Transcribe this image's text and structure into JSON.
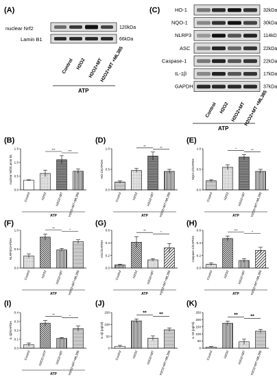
{
  "panels": {
    "A": "(A)",
    "B": "(B)",
    "C": "(C)",
    "D": "(D)",
    "E": "(E)",
    "F": "(F)",
    "G": "(G)",
    "H": "(H)",
    "I": "(I)",
    "J": "(J)",
    "K": "(K)"
  },
  "blot_a": {
    "rows": [
      {
        "label": "nuclear Nrf2",
        "kda": "120kDa"
      },
      {
        "label": "Lamin B1",
        "kda": "66kDa"
      }
    ],
    "conditions": [
      "Control",
      "H2O2",
      "H2O2+MT",
      "H2O2+MT +ML385"
    ],
    "group_label": "ATP"
  },
  "blot_c": {
    "rows": [
      {
        "label": "HO-1",
        "kda": "32kDa"
      },
      {
        "label": "NQO-1",
        "kda": "30kDa"
      },
      {
        "label": "NLRP3",
        "kda": "114kDa"
      },
      {
        "label": "ASC",
        "kda": "22kDa"
      },
      {
        "label": "Caspase-1",
        "kda": "22kDa"
      },
      {
        "label": "IL-1β",
        "kda": "17kDa"
      },
      {
        "label": "GAPDH",
        "kda": "37kDa"
      }
    ],
    "conditions": [
      "Control",
      "H2O2",
      "H2O2+MT",
      "H2O2+MT +ML385"
    ],
    "group_label": "ATP"
  },
  "chart_data": [
    {
      "panel": "B",
      "type": "bar",
      "ylabel": "nuclear Nrf2/Lamin B1",
      "ylim": [
        0,
        1.5
      ],
      "yticks": [
        "0.0",
        "0.5",
        "1.0",
        "1.5"
      ],
      "categories": [
        "Control",
        "H2O2",
        "H2O2+MT",
        "H2O2+MT+ML385"
      ],
      "values": [
        0.35,
        0.6,
        1.1,
        0.68
      ],
      "errors": [
        0.02,
        0.12,
        0.15,
        0.08
      ],
      "xlabel": "ATP",
      "significance": [
        {
          "from": 1,
          "to": 2,
          "label": "***"
        },
        {
          "from": 2,
          "to": 3,
          "label": "***"
        }
      ]
    },
    {
      "panel": "D",
      "type": "bar",
      "ylabel": "HO-1/GAPDH",
      "ylim": [
        0,
        1.0
      ],
      "yticks": [
        "0.0",
        "0.5",
        "1.0"
      ],
      "categories": [
        "Control",
        "H2O2",
        "H2O2+MT",
        "H2O2+MT+ML385"
      ],
      "values": [
        0.19,
        0.47,
        0.82,
        0.45
      ],
      "errors": [
        0.03,
        0.05,
        0.1,
        0.05
      ],
      "xlabel": "ATP",
      "significance": [
        {
          "from": 1,
          "to": 2,
          "label": "**"
        },
        {
          "from": 2,
          "to": 3,
          "label": "**"
        }
      ]
    },
    {
      "panel": "E",
      "type": "bar",
      "ylabel": "NQO-1/GAPDH",
      "ylim": [
        0,
        1.0
      ],
      "yticks": [
        "0.0",
        "0.5",
        "1.0"
      ],
      "categories": [
        "Control",
        "H2O2",
        "H2O2+MT",
        "H2O2+MT+ML385"
      ],
      "values": [
        0.22,
        0.55,
        0.8,
        0.45
      ],
      "errors": [
        0.03,
        0.06,
        0.06,
        0.05
      ],
      "xlabel": "ATP",
      "significance": [
        {
          "from": 1,
          "to": 2,
          "label": "*"
        },
        {
          "from": 2,
          "to": 3,
          "label": "**"
        }
      ]
    },
    {
      "panel": "F",
      "type": "bar",
      "ylabel": "NLRP3/GAPDH",
      "ylim": [
        0,
        1.0
      ],
      "yticks": [
        "0.0",
        "0.5",
        "1.0"
      ],
      "categories": [
        "Control",
        "H2O2",
        "H2O2+MT",
        "H2O2+MT+ML385"
      ],
      "values": [
        0.32,
        0.82,
        0.48,
        0.7
      ],
      "errors": [
        0.05,
        0.08,
        0.04,
        0.05
      ],
      "xlabel": "ATP",
      "significance": [
        {
          "from": 1,
          "to": 2,
          "label": "**"
        },
        {
          "from": 2,
          "to": 3,
          "label": "*"
        }
      ]
    },
    {
      "panel": "G",
      "type": "bar",
      "ylabel": "ASC/GAPDH",
      "ylim": [
        0,
        0.6
      ],
      "yticks": [
        "0.0",
        "0.2",
        "0.4",
        "0.6"
      ],
      "categories": [
        "Control",
        "H2O2",
        "H2O2+MT",
        "H2O2+MT+ML385"
      ],
      "values": [
        0.05,
        0.41,
        0.13,
        0.32
      ],
      "errors": [
        0.01,
        0.09,
        0.02,
        0.07
      ],
      "xlabel": "ATP",
      "significance": [
        {
          "from": 1,
          "to": 2,
          "label": "**"
        },
        {
          "from": 2,
          "to": 3,
          "label": "*"
        }
      ]
    },
    {
      "panel": "H",
      "type": "bar",
      "ylabel": "Caspase-1/GAPDH",
      "ylim": [
        0,
        0.6
      ],
      "yticks": [
        "0.0",
        "0.2",
        "0.4",
        "0.6"
      ],
      "categories": [
        "Control",
        "H2O2",
        "H2O2+MT",
        "H2O2+MT+ML385"
      ],
      "values": [
        0.06,
        0.47,
        0.12,
        0.28
      ],
      "errors": [
        0.02,
        0.04,
        0.03,
        0.05
      ],
      "xlabel": "ATP",
      "significance": [
        {
          "from": 1,
          "to": 2,
          "label": "***"
        },
        {
          "from": 2,
          "to": 3,
          "label": "*"
        }
      ]
    },
    {
      "panel": "I",
      "type": "bar",
      "ylabel": "IL-1β/GAPDH",
      "ylim": [
        0,
        0.4
      ],
      "yticks": [
        "0.0",
        "0.1",
        "0.2",
        "0.3",
        "0.4"
      ],
      "categories": [
        "Control",
        "H2O2+ATP",
        "H2O2+MT",
        "H2O2+MT+ML385"
      ],
      "values": [
        0.04,
        0.28,
        0.11,
        0.22
      ],
      "errors": [
        0.02,
        0.03,
        0.01,
        0.03
      ],
      "xlabel": "ATP",
      "significance": [
        {
          "from": 1,
          "to": 2,
          "label": "**"
        },
        {
          "from": 2,
          "to": 3,
          "label": "*"
        }
      ]
    },
    {
      "panel": "J",
      "type": "bar",
      "ylabel": "IL-1β (pg/ml)",
      "ylim": [
        0,
        150
      ],
      "yticks": [
        "0",
        "50",
        "100",
        "150"
      ],
      "categories": [
        "Control",
        "H2O2",
        "H2O2+MT",
        "H2O2+MT+ML385"
      ],
      "values": [
        8,
        115,
        42,
        78
      ],
      "errors": [
        4,
        8,
        10,
        7
      ],
      "xlabel": "",
      "significance": [
        {
          "from": 1,
          "to": 2,
          "label": "**"
        },
        {
          "from": 2,
          "to": 3,
          "label": "**"
        }
      ]
    },
    {
      "panel": "K",
      "type": "bar",
      "ylabel": "IL-18 (pg/ml)",
      "ylim": [
        0,
        250
      ],
      "yticks": [
        "0",
        "50",
        "100",
        "150",
        "200",
        "250"
      ],
      "categories": [
        "Control",
        "H2O2",
        "H2O2+MT",
        "H2O2+MT+ML385"
      ],
      "values": [
        8,
        175,
        45,
        120
      ],
      "errors": [
        4,
        15,
        18,
        12
      ],
      "xlabel": "",
      "significance": [
        {
          "from": 1,
          "to": 2,
          "label": "**"
        },
        {
          "from": 2,
          "to": 3,
          "label": "**"
        }
      ]
    }
  ]
}
